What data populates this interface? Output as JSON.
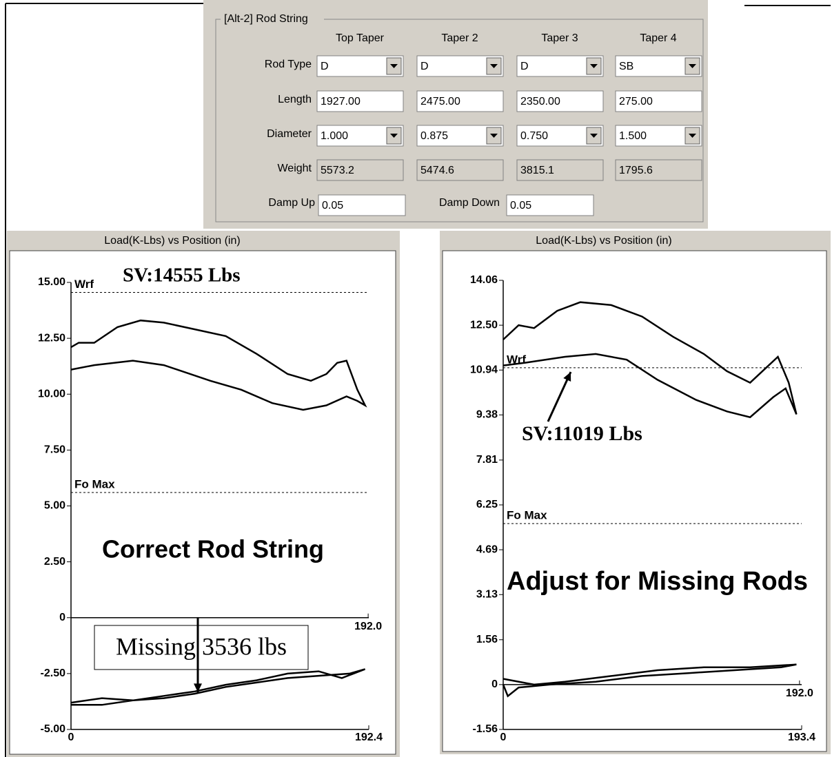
{
  "form": {
    "group_title": "[Alt-2]  Rod String",
    "columns": [
      "Top Taper",
      "Taper 2",
      "Taper 3",
      "Taper 4"
    ],
    "rows": [
      {
        "label": "Rod Type",
        "kind": "dropdown",
        "values": [
          "D",
          "D",
          "D",
          "SB"
        ]
      },
      {
        "label": "Length",
        "kind": "text",
        "values": [
          "1927.00",
          "2475.00",
          "2350.00",
          "275.00"
        ]
      },
      {
        "label": "Diameter",
        "kind": "dropdown",
        "values": [
          "1.000",
          "0.875",
          "0.750",
          "1.500"
        ]
      },
      {
        "label": "Weight",
        "kind": "readonly",
        "values": [
          "5573.2",
          "5474.6",
          "3815.1",
          "1795.6"
        ]
      }
    ],
    "damping": [
      {
        "label": "Damp Up",
        "value": "0.05"
      },
      {
        "label": "Damp Down",
        "value": "0.05"
      }
    ]
  },
  "chart_data": [
    {
      "type": "line",
      "title": "Load(K-Lbs) vs Position (in)",
      "xlim": [
        0,
        192.4
      ],
      "ylim": [
        -5,
        15
      ],
      "xticks": [
        0,
        {
          "value": 192.4,
          "label": "192.4"
        }
      ],
      "zero_axis_ticks": [
        {
          "value": 192.0,
          "label": "192.0"
        }
      ],
      "yticks": [
        {
          "value": 15,
          "label": "15.00"
        },
        {
          "value": 12.5,
          "label": "12.50"
        },
        {
          "value": 10,
          "label": "10.00"
        },
        {
          "value": 7.5,
          "label": "7.50"
        },
        {
          "value": 5,
          "label": "5.00"
        },
        {
          "value": 2.5,
          "label": "2.50"
        },
        0,
        {
          "value": -2.5,
          "label": "-2.50"
        },
        {
          "value": -5,
          "label": "-5.00"
        }
      ],
      "reference_lines": [
        {
          "name": "Wrf",
          "value": 14.555
        },
        {
          "name": "Fo Max",
          "value": 5.6
        }
      ],
      "annotations": [
        "SV:14555 Lbs",
        "Correct Rod String",
        "Missing 3536 lbs"
      ],
      "series": [
        {
          "color": "#000000",
          "x": [
            0,
            5,
            15,
            30,
            45,
            60,
            80,
            100,
            120,
            140,
            155,
            165,
            172,
            178,
            185,
            190,
            185,
            178,
            165,
            150,
            130,
            110,
            90,
            60,
            40,
            15,
            0
          ],
          "values": [
            12.1,
            12.3,
            12.3,
            13.0,
            13.3,
            13.2,
            12.9,
            12.6,
            11.8,
            10.9,
            10.6,
            10.9,
            11.4,
            11.5,
            10.2,
            9.5,
            9.7,
            9.9,
            9.5,
            9.3,
            9.6,
            10.2,
            10.6,
            11.3,
            11.5,
            11.3,
            11.1
          ]
        },
        {
          "color": "#000000",
          "x": [
            0,
            20,
            40,
            60,
            80,
            100,
            120,
            140,
            160,
            175,
            190,
            180,
            160,
            140,
            120,
            100,
            80,
            60,
            40,
            20,
            0
          ],
          "values": [
            -3.8,
            -3.6,
            -3.7,
            -3.5,
            -3.3,
            -3.0,
            -2.8,
            -2.5,
            -2.4,
            -2.7,
            -2.3,
            -2.5,
            -2.6,
            -2.7,
            -2.9,
            -3.1,
            -3.4,
            -3.6,
            -3.7,
            -3.9,
            -3.9
          ]
        }
      ]
    },
    {
      "type": "line",
      "title": "Load(K-Lbs) vs Position (in)",
      "xlim": [
        0,
        193.4
      ],
      "ylim": [
        -1.56,
        14.06
      ],
      "xticks": [
        0,
        {
          "value": 193.4,
          "label": "193.4"
        }
      ],
      "zero_axis_ticks": [
        {
          "value": 192.0,
          "label": "192.0"
        }
      ],
      "yticks": [
        14.06,
        {
          "value": 12.5,
          "label": "12.50"
        },
        10.94,
        9.38,
        7.81,
        6.25,
        4.69,
        3.13,
        1.56,
        0,
        -1.56
      ],
      "reference_lines": [
        {
          "name": "Wrf",
          "value": 11.019
        },
        {
          "name": "Fo Max",
          "value": 5.6
        }
      ],
      "annotations": [
        "SV:11019 Lbs",
        "Adjust for Missing Rods"
      ],
      "series": [
        {
          "color": "#000000",
          "x": [
            0,
            10,
            20,
            35,
            50,
            70,
            90,
            110,
            130,
            145,
            160,
            170,
            178,
            185,
            190,
            183,
            175,
            160,
            145,
            125,
            100,
            80,
            60,
            40,
            15,
            0
          ],
          "values": [
            12.0,
            12.5,
            12.4,
            13.0,
            13.3,
            13.2,
            12.8,
            12.1,
            11.5,
            10.9,
            10.5,
            11.0,
            11.4,
            10.5,
            9.4,
            10.3,
            10.0,
            9.3,
            9.5,
            9.9,
            10.6,
            11.3,
            11.5,
            11.4,
            11.2,
            11.1
          ]
        },
        {
          "color": "#000000",
          "x": [
            0,
            20,
            40,
            70,
            100,
            130,
            160,
            190,
            180,
            150,
            120,
            90,
            60,
            30,
            10,
            3,
            0
          ],
          "values": [
            0.2,
            0.0,
            0.1,
            0.3,
            0.5,
            0.6,
            0.6,
            0.7,
            0.6,
            0.5,
            0.4,
            0.3,
            0.1,
            0.0,
            -0.1,
            -0.4,
            0.0
          ]
        }
      ]
    }
  ]
}
